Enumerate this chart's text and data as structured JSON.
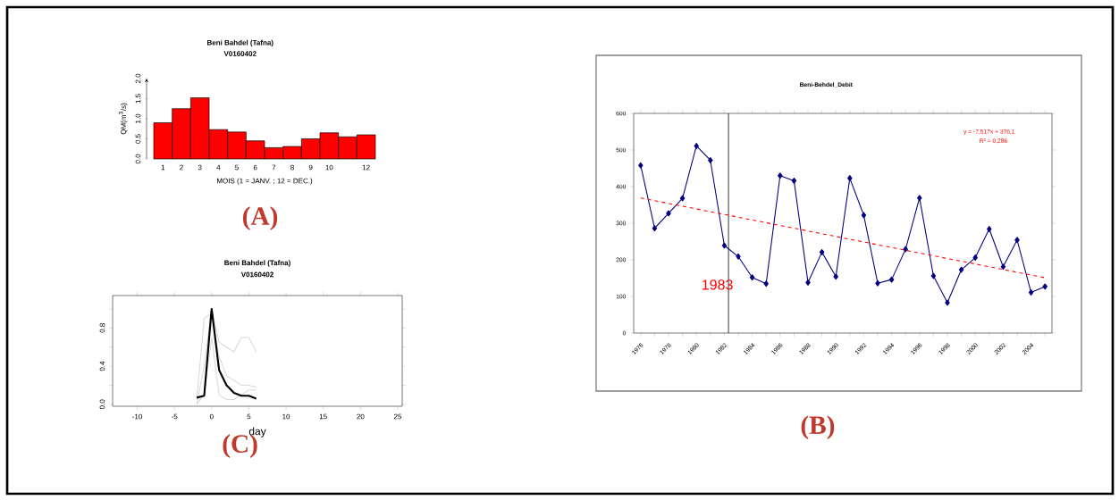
{
  "chart_data": [
    {
      "type": "bar",
      "title": "Beni Bahdel (Tafna)",
      "subtitle": "V0160402",
      "xlabel": "MOIS (1 = JANV. ; 12 = DEC.)",
      "ylabel": "QM(m$^{3}$/s)",
      "categories": [
        "1",
        "2",
        "3",
        "4",
        "5",
        "6",
        "7",
        "8",
        "9",
        "10",
        null,
        "12"
      ],
      "values": [
        0.9,
        1.25,
        1.52,
        0.73,
        0.67,
        0.45,
        0.28,
        0.31,
        0.5,
        0.65,
        0.55,
        0.6
      ],
      "color": "#ff0000",
      "ylim": [
        0,
        2
      ],
      "yticks": [
        {
          "value": 0,
          "label": "0.0"
        },
        {
          "value": 0.5,
          "label": "0.5"
        },
        {
          "value": 1,
          "label": "1.0"
        },
        {
          "value": 1.5,
          "label": "1.5"
        },
        {
          "value": 2,
          "label": "2.0"
        }
      ],
      "annotations": [
        "(A)"
      ]
    },
    {
      "type": "line",
      "title": "Beni-Behdel_Debit",
      "marker": "diamond",
      "x": [
        1976,
        1977,
        1978,
        1979,
        1980,
        1981,
        1982,
        1983,
        1984,
        1985,
        1986,
        1987,
        1988,
        1989,
        1990,
        1991,
        1992,
        1993,
        1994,
        1995,
        1996,
        1997,
        1998,
        1999,
        2000,
        2001,
        2002,
        2003,
        2004,
        2005
      ],
      "series": [
        {
          "color": "#000080",
          "values": [
            458,
            286,
            327,
            368,
            511,
            472,
            239,
            209,
            152,
            135,
            430,
            416,
            138,
            221,
            154,
            423,
            322,
            136,
            146,
            229,
            369,
            156,
            83,
            173,
            206,
            284,
            181,
            254,
            111,
            127
          ]
        },
        {
          "type": "line",
          "x": [
            1976,
            2005
          ],
          "values": [
            369,
            151
          ],
          "color": "#ff0000",
          "marker": "none",
          "line_style": "dashed"
        }
      ],
      "xlim": [
        1975.5,
        2005.5
      ],
      "xticks": [
        1976,
        {
          "value": 1977,
          "label": null
        },
        1978,
        {
          "value": 1979,
          "label": null
        },
        1980,
        {
          "value": 1981,
          "label": null
        },
        1982,
        {
          "value": 1983,
          "label": null
        },
        1984,
        {
          "value": 1985,
          "label": null
        },
        1986,
        {
          "value": 1987,
          "label": null
        },
        1988,
        {
          "value": 1989,
          "label": null
        },
        1990,
        {
          "value": 1991,
          "label": null
        },
        1992,
        {
          "value": 1993,
          "label": null
        },
        1994,
        {
          "value": 1995,
          "label": null
        },
        1996,
        {
          "value": 1997,
          "label": null
        },
        1998,
        {
          "value": 1999,
          "label": null
        },
        2000,
        {
          "value": 2001,
          "label": null
        },
        2002,
        {
          "value": 2003,
          "label": null
        },
        2004,
        {
          "value": 2005,
          "label": null
        }
      ],
      "ylim": [
        0,
        600
      ],
      "yticks": [
        0,
        100,
        200,
        300,
        400,
        500,
        600
      ],
      "ref_lines": [
        {
          "axis": "x",
          "value": 1982.3,
          "color": "#000000"
        }
      ],
      "annotations": [
        "1983",
        "y = -7,517x + 376,1",
        "R² = 0,286",
        "(B)"
      ]
    },
    {
      "type": "line",
      "title": "Beni Bahdel (Tafna)",
      "subtitle": "V0160402",
      "xlabel": "day",
      "marker": "none",
      "x": [
        -2,
        -1,
        0,
        1,
        2,
        3,
        4,
        5,
        6
      ],
      "series": [
        {
          "color": "#d9d9d9",
          "values": [
            0.0,
            0.4,
            1.0,
            0.65,
            0.6,
            0.55,
            0.7,
            0.7,
            0.55
          ]
        },
        {
          "color": "#d9d9d9",
          "values": [
            0.05,
            0.9,
            0.95,
            0.5,
            0.3,
            0.25,
            0.2,
            0.2,
            0.18
          ]
        },
        {
          "color": "#d9d9d9",
          "values": [
            0.0,
            0.1,
            0.7,
            0.1,
            0.05,
            0.05,
            0.1,
            0.15,
            0.15
          ]
        },
        {
          "color": "#000000",
          "values": [
            0.07,
            0.09,
            1.0,
            0.36,
            0.2,
            0.12,
            0.09,
            0.09,
            0.06
          ]
        }
      ],
      "xlim": [
        -13.3,
        25.6
      ],
      "xticks": [
        -10,
        -5,
        0,
        5,
        10,
        15,
        20,
        25
      ],
      "ylim": [
        -0.02,
        1.14
      ],
      "yticks": [
        {
          "value": 0,
          "label": "0.0"
        },
        {
          "value": 0.2,
          "label": null
        },
        {
          "value": 0.4,
          "label": "0.4"
        },
        {
          "value": 0.6,
          "label": null
        },
        {
          "value": 0.8,
          "label": "0.8"
        },
        {
          "value": 1.0,
          "label": null
        }
      ],
      "annotations": [
        "(C)"
      ]
    }
  ]
}
